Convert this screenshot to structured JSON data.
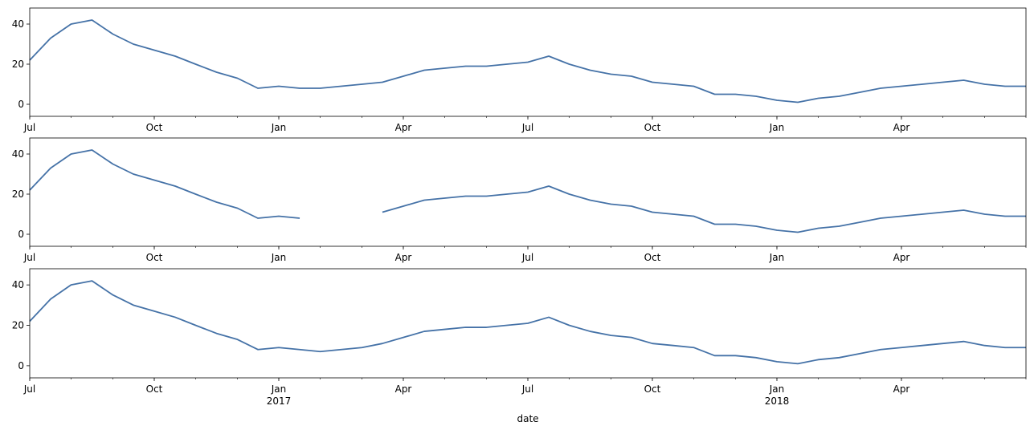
{
  "chart_data": [
    {
      "type": "line",
      "x": [
        2016.5,
        2016.542,
        2016.583,
        2016.625,
        2016.667,
        2016.708,
        2016.75,
        2016.792,
        2016.833,
        2016.875,
        2016.917,
        2016.958,
        2017,
        2017.042,
        2017.083,
        2017.125,
        2017.167,
        2017.208,
        2017.25,
        2017.292,
        2017.333,
        2017.375,
        2017.417,
        2017.458,
        2017.5,
        2017.542,
        2017.583,
        2017.625,
        2017.667,
        2017.708,
        2017.75,
        2017.792,
        2017.833,
        2017.875,
        2017.917,
        2017.958,
        2018,
        2018.042,
        2018.083,
        2018.125,
        2018.167,
        2018.208,
        2018.25,
        2018.292,
        2018.333,
        2018.375,
        2018.417,
        2018.458,
        2018.5
      ],
      "series": [
        {
          "color": "#4572a7",
          "values": [
            22,
            33,
            40,
            42,
            35,
            30,
            27,
            24,
            20,
            16,
            13,
            8,
            9,
            8,
            8,
            9,
            10,
            11,
            14,
            17,
            18,
            19,
            19,
            20,
            21,
            24,
            20,
            17,
            15,
            14,
            11,
            10,
            9,
            5,
            5,
            4,
            2,
            1,
            3,
            4,
            6,
            8,
            9,
            10,
            11,
            12,
            10,
            9,
            9
          ]
        }
      ],
      "xlim": [
        2016.5,
        2018.5
      ],
      "ylim": [
        -6,
        48
      ],
      "yticks": [
        0,
        20,
        40
      ],
      "xticks": [
        {
          "value": 2016.5,
          "label": "Jul"
        },
        {
          "value": 2016.75,
          "label": "Oct"
        },
        {
          "value": 2017,
          "label": "Jan"
        },
        {
          "value": 2017.25,
          "label": "Apr"
        },
        {
          "value": 2017.5,
          "label": "Jul"
        },
        {
          "value": 2017.75,
          "label": "Oct"
        },
        {
          "value": 2018,
          "label": "Jan"
        },
        {
          "value": 2018.25,
          "label": "Apr"
        }
      ]
    },
    {
      "type": "line",
      "x": [
        2016.5,
        2016.542,
        2016.583,
        2016.625,
        2016.667,
        2016.708,
        2016.75,
        2016.792,
        2016.833,
        2016.875,
        2016.917,
        2016.958,
        2017,
        2017.042,
        2017.083,
        2017.125,
        2017.167,
        2017.208,
        2017.25,
        2017.292,
        2017.333,
        2017.375,
        2017.417,
        2017.458,
        2017.5,
        2017.542,
        2017.583,
        2017.625,
        2017.667,
        2017.708,
        2017.75,
        2017.792,
        2017.833,
        2017.875,
        2017.917,
        2017.958,
        2018,
        2018.042,
        2018.083,
        2018.125,
        2018.167,
        2018.208,
        2018.25,
        2018.292,
        2018.333,
        2018.375,
        2018.417,
        2018.458,
        2018.5
      ],
      "series": [
        {
          "color": "#4572a7",
          "values": [
            22,
            33,
            40,
            42,
            35,
            30,
            27,
            24,
            20,
            16,
            13,
            8,
            9,
            8,
            null,
            null,
            null,
            11,
            14,
            17,
            18,
            19,
            19,
            20,
            21,
            24,
            20,
            17,
            15,
            14,
            11,
            10,
            9,
            5,
            5,
            4,
            2,
            1,
            3,
            4,
            6,
            8,
            9,
            10,
            11,
            12,
            10,
            9,
            9
          ]
        }
      ],
      "xlim": [
        2016.5,
        2018.5
      ],
      "ylim": [
        -6,
        48
      ],
      "yticks": [
        0,
        20,
        40
      ],
      "xticks": [
        {
          "value": 2016.5,
          "label": "Jul"
        },
        {
          "value": 2016.75,
          "label": "Oct"
        },
        {
          "value": 2017,
          "label": "Jan"
        },
        {
          "value": 2017.25,
          "label": "Apr"
        },
        {
          "value": 2017.5,
          "label": "Jul"
        },
        {
          "value": 2017.75,
          "label": "Oct"
        },
        {
          "value": 2018,
          "label": "Jan"
        },
        {
          "value": 2018.25,
          "label": "Apr"
        }
      ]
    },
    {
      "type": "line",
      "x": [
        2016.5,
        2016.542,
        2016.583,
        2016.625,
        2016.667,
        2016.708,
        2016.75,
        2016.792,
        2016.833,
        2016.875,
        2016.917,
        2016.958,
        2017,
        2017.042,
        2017.083,
        2017.125,
        2017.167,
        2017.208,
        2017.25,
        2017.292,
        2017.333,
        2017.375,
        2017.417,
        2017.458,
        2017.5,
        2017.542,
        2017.583,
        2017.625,
        2017.667,
        2017.708,
        2017.75,
        2017.792,
        2017.833,
        2017.875,
        2017.917,
        2017.958,
        2018,
        2018.042,
        2018.083,
        2018.125,
        2018.167,
        2018.208,
        2018.25,
        2018.292,
        2018.333,
        2018.375,
        2018.417,
        2018.458,
        2018.5
      ],
      "series": [
        {
          "color": "#4572a7",
          "values": [
            22,
            33,
            40,
            42,
            35,
            30,
            27,
            24,
            20,
            16,
            13,
            8,
            9,
            8,
            7,
            8,
            9,
            11,
            14,
            17,
            18,
            19,
            19,
            20,
            21,
            24,
            20,
            17,
            15,
            14,
            11,
            10,
            9,
            5,
            5,
            4,
            2,
            1,
            3,
            4,
            6,
            8,
            9,
            10,
            11,
            12,
            10,
            9,
            9
          ]
        }
      ],
      "xlim": [
        2016.5,
        2018.5
      ],
      "ylim": [
        -6,
        48
      ],
      "yticks": [
        0,
        20,
        40
      ],
      "xticks": [
        {
          "value": 2016.5,
          "label": "Jul"
        },
        {
          "value": 2016.75,
          "label": "Oct"
        },
        {
          "value": 2017,
          "label": "Jan"
        },
        {
          "value": 2017.25,
          "label": "Apr"
        },
        {
          "value": 2017.5,
          "label": "Jul"
        },
        {
          "value": 2017.75,
          "label": "Oct"
        },
        {
          "value": 2018,
          "label": "Jan"
        },
        {
          "value": 2018.25,
          "label": "Apr"
        }
      ],
      "year_labels": [
        {
          "value": 2017,
          "label": "2017"
        },
        {
          "value": 2018,
          "label": "2018"
        }
      ],
      "xlabel": "date"
    }
  ]
}
